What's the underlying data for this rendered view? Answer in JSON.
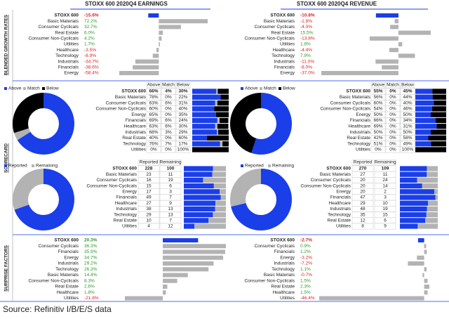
{
  "headers": [
    "STOXX 600 2020Q4 EARNINGS",
    "STOXX 600 2020Q4 REVENUE"
  ],
  "section_labels": [
    "BLENDED GROWTH RATES",
    "SCORECARD",
    "SURPRISE FACTORS"
  ],
  "source": "Source: Refinitiv I/B/E/S data",
  "colors": {
    "bar": "#b3b3b3",
    "highlight": "#1a3ee8",
    "positive": "#2e9a2e",
    "negative": "#e02020"
  },
  "panels": [
    {
      "growth": {
        "categories": [
          "STOXX 600",
          "Basic Materials",
          "Consumer Cyclicals",
          "Real Estate",
          "Consumer Non-Cyclicals",
          "Utilities",
          "Healthcare",
          "Technology",
          "Industrials",
          "Financials",
          "Energy"
        ],
        "values": [
          -15.6,
          72.2,
          32.7,
          6.0,
          4.2,
          1.7,
          -3.5,
          -8.9,
          -34.7,
          -38.6,
          -58.4
        ],
        "value_labels": [
          "-15.6%",
          "72.2%",
          "32.7%",
          "6.0%",
          "4.2%",
          "1.7%",
          "-3.5%",
          "-8.9%",
          "-34.7%",
          "-38.6%",
          "-58.4%"
        ]
      },
      "scorecard": {
        "legend": [
          "Above",
          "Match",
          "Below"
        ],
        "columns": [
          "Above",
          "Match",
          "Below"
        ],
        "colors": [
          "#1a3ee8",
          "#b3b3b3",
          "#000000"
        ],
        "rows": [
          {
            "name": "STOXX 600",
            "values": [
              66,
              4,
              30
            ],
            "value_labels": [
              "66%",
              "4%",
              "30%"
            ]
          },
          {
            "name": "Basic Materials",
            "values": [
              78,
              0,
              22
            ],
            "value_labels": [
              "78%",
              "0%",
              "22%"
            ]
          },
          {
            "name": "Consumer Cyclicals",
            "values": [
              63,
              6,
              31
            ],
            "value_labels": [
              "63%",
              "6%",
              "31%"
            ]
          },
          {
            "name": "Consumer Non-Cyclicals",
            "values": [
              60,
              0,
              40
            ],
            "value_labels": [
              "60%",
              "0%",
              "40%"
            ]
          },
          {
            "name": "Energy",
            "values": [
              65,
              0,
              35
            ],
            "value_labels": [
              "65%",
              "0%",
              "35%"
            ]
          },
          {
            "name": "Financials",
            "values": [
              69,
              6,
              24
            ],
            "value_labels": [
              "69%",
              "6%",
              "24%"
            ]
          },
          {
            "name": "Healthcare",
            "values": [
              63,
              6,
              30
            ],
            "value_labels": [
              "63%",
              "6%",
              "30%"
            ]
          },
          {
            "name": "Industrials",
            "values": [
              68,
              3,
              29
            ],
            "value_labels": [
              "68%",
              "3%",
              "29%"
            ]
          },
          {
            "name": "Real Estate",
            "values": [
              40,
              0,
              60
            ],
            "value_labels": [
              "40%",
              "0%",
              "60%"
            ]
          },
          {
            "name": "Technology",
            "values": [
              76,
              7,
              17
            ],
            "value_labels": [
              "76%",
              "7%",
              "17%"
            ]
          },
          {
            "name": "Utilities",
            "values": [
              0,
              0,
              100
            ],
            "value_labels": [
              "0%",
              "0%",
              "100%"
            ]
          }
        ]
      },
      "reporting": {
        "legend": [
          "Reported",
          "Remaining"
        ],
        "columns": [
          "Reported",
          "Remaining"
        ],
        "colors": [
          "#1a3ee8",
          "#b3b3b3"
        ],
        "rows": [
          {
            "name": "STOXX 600",
            "values": [
              228,
              100
            ]
          },
          {
            "name": "Basic Materials",
            "values": [
              23,
              11
            ]
          },
          {
            "name": "Consumer Cyclicals",
            "values": [
              16,
              19
            ]
          },
          {
            "name": "Consumer Non-Cyclicals",
            "values": [
              15,
              6
            ]
          },
          {
            "name": "Energy",
            "values": [
              17,
              3
            ]
          },
          {
            "name": "Financials",
            "values": [
              49,
              7
            ]
          },
          {
            "name": "Healthcare",
            "values": [
              27,
              9
            ]
          },
          {
            "name": "Industrials",
            "values": [
              38,
              13
            ]
          },
          {
            "name": "Technology",
            "values": [
              29,
              13
            ]
          },
          {
            "name": "Real Estate",
            "values": [
              10,
              7
            ]
          },
          {
            "name": "Utilities",
            "values": [
              4,
              12
            ]
          }
        ]
      },
      "surprise": {
        "categories": [
          "STOXX 600",
          "Consumer Cyclicals",
          "Financials",
          "Energy",
          "Industrials",
          "Technology",
          "Basic Materials",
          "Consumer Non-Cyclicals",
          "Real Estate",
          "Healthcare",
          "Utilities"
        ],
        "values": [
          20.3,
          36.3,
          35.9,
          34.7,
          29.2,
          26.3,
          14.4,
          8.3,
          2.6,
          1.8,
          -21.8
        ],
        "value_labels": [
          "20.3%",
          "36.3%",
          "35.9%",
          "34.7%",
          "29.2%",
          "26.3%",
          "14.4%",
          "8.3%",
          "2.6%",
          "1.8%",
          "-21.8%"
        ]
      }
    },
    {
      "growth": {
        "categories": [
          "STOXX 600",
          "Basic Materials",
          "Consumer Cyclicals",
          "Real Estate",
          "Consumer Non-Cyclicals",
          "Utilities",
          "Healthcare",
          "Technology",
          "Industrials",
          "Financials",
          "Energy"
        ],
        "values": [
          -10.8,
          -1.8,
          -4.0,
          15.5,
          -13.8,
          1.8,
          -4.4,
          7.9,
          -11.0,
          -8.0,
          -37.0
        ],
        "value_labels": [
          "-10.8%",
          "-1.8%",
          "-4.0%",
          "15.5%",
          "-13.8%",
          "1.8%",
          "-4.4%",
          "7.9%",
          "-11.0%",
          "-8.0%",
          "-37.0%"
        ]
      },
      "scorecard": {
        "legend": [
          "Above",
          "Match",
          "Below"
        ],
        "columns": [
          "Above",
          "Match",
          "Below"
        ],
        "colors": [
          "#1a3ee8",
          "#b3b3b3",
          "#000000"
        ],
        "rows": [
          {
            "name": "STOXX 600",
            "values": [
              55,
              0,
              45
            ],
            "value_labels": [
              "55%",
              "0%",
              "45%"
            ]
          },
          {
            "name": "Basic Materials",
            "values": [
              56,
              0,
              44
            ],
            "value_labels": [
              "56%",
              "0%",
              "44%"
            ]
          },
          {
            "name": "Consumer Cyclicals",
            "values": [
              60,
              0,
              40
            ],
            "value_labels": [
              "60%",
              "0%",
              "40%"
            ]
          },
          {
            "name": "Consumer Non-Cyclicals",
            "values": [
              54,
              0,
              46
            ],
            "value_labels": [
              "54%",
              "0%",
              "46%"
            ]
          },
          {
            "name": "Energy",
            "values": [
              50,
              0,
              50
            ],
            "value_labels": [
              "50%",
              "0%",
              "50%"
            ]
          },
          {
            "name": "Financials",
            "values": [
              66,
              0,
              34
            ],
            "value_labels": [
              "66%",
              "0%",
              "34%"
            ]
          },
          {
            "name": "Healthcare",
            "values": [
              69,
              0,
              31
            ],
            "value_labels": [
              "69%",
              "0%",
              "31%"
            ]
          },
          {
            "name": "Industrials",
            "values": [
              50,
              0,
              50
            ],
            "value_labels": [
              "50%",
              "0%",
              "50%"
            ]
          },
          {
            "name": "Real Estate",
            "values": [
              42,
              0,
              58
            ],
            "value_labels": [
              "42%",
              "0%",
              "58%"
            ]
          },
          {
            "name": "Technology",
            "values": [
              51,
              0,
              49
            ],
            "value_labels": [
              "51%",
              "0%",
              "49%"
            ]
          },
          {
            "name": "Utilities",
            "values": [
              0,
              0,
              100
            ],
            "value_labels": [
              "0%",
              "0%",
              "100%"
            ]
          }
        ]
      },
      "reporting": {
        "legend": [
          "Reported",
          "Remaining"
        ],
        "columns": [
          "Reported",
          "Remaining"
        ],
        "colors": [
          "#1a3ee8",
          "#b3b3b3"
        ],
        "rows": [
          {
            "name": "STOXX 600",
            "values": [
              270,
              109
            ]
          },
          {
            "name": "Basic Materials",
            "values": [
              27,
              11
            ]
          },
          {
            "name": "Consumer Cyclicals",
            "values": [
              20,
              24
            ]
          },
          {
            "name": "Consumer Non-Cyclicals",
            "values": [
              20,
              14
            ]
          },
          {
            "name": "Energy",
            "values": [
              20,
              2
            ]
          },
          {
            "name": "Financials",
            "values": [
              47,
              3
            ]
          },
          {
            "name": "Healthcare",
            "values": [
              29,
              10
            ]
          },
          {
            "name": "Industrials",
            "values": [
              48,
              19
            ]
          },
          {
            "name": "Technology",
            "values": [
              35,
              15
            ]
          },
          {
            "name": "Real Estate",
            "values": [
              12,
              6
            ]
          },
          {
            "name": "Utilities",
            "values": [
              8,
              9
            ]
          }
        ]
      },
      "surprise": {
        "categories": [
          "STOXX 600",
          "Consumer Cyclicals",
          "Financials",
          "Energy",
          "Industrials",
          "Technology",
          "Basic Materials",
          "Consumer Non-Cyclicals",
          "Real Estate",
          "Healthcare",
          "Utilities"
        ],
        "values": [
          -2.7,
          0.9,
          1.2,
          -3.2,
          -7.2,
          1.1,
          -0.7,
          1.5,
          2.3,
          1.5,
          -46.4
        ],
        "value_labels": [
          "-2.7%",
          "0.9%",
          "1.2%",
          "-3.2%",
          "-7.2%",
          "1.1%",
          "-0.7%",
          "1.5%",
          "2.3%",
          "1.5%",
          "-46.4%"
        ]
      }
    }
  ]
}
